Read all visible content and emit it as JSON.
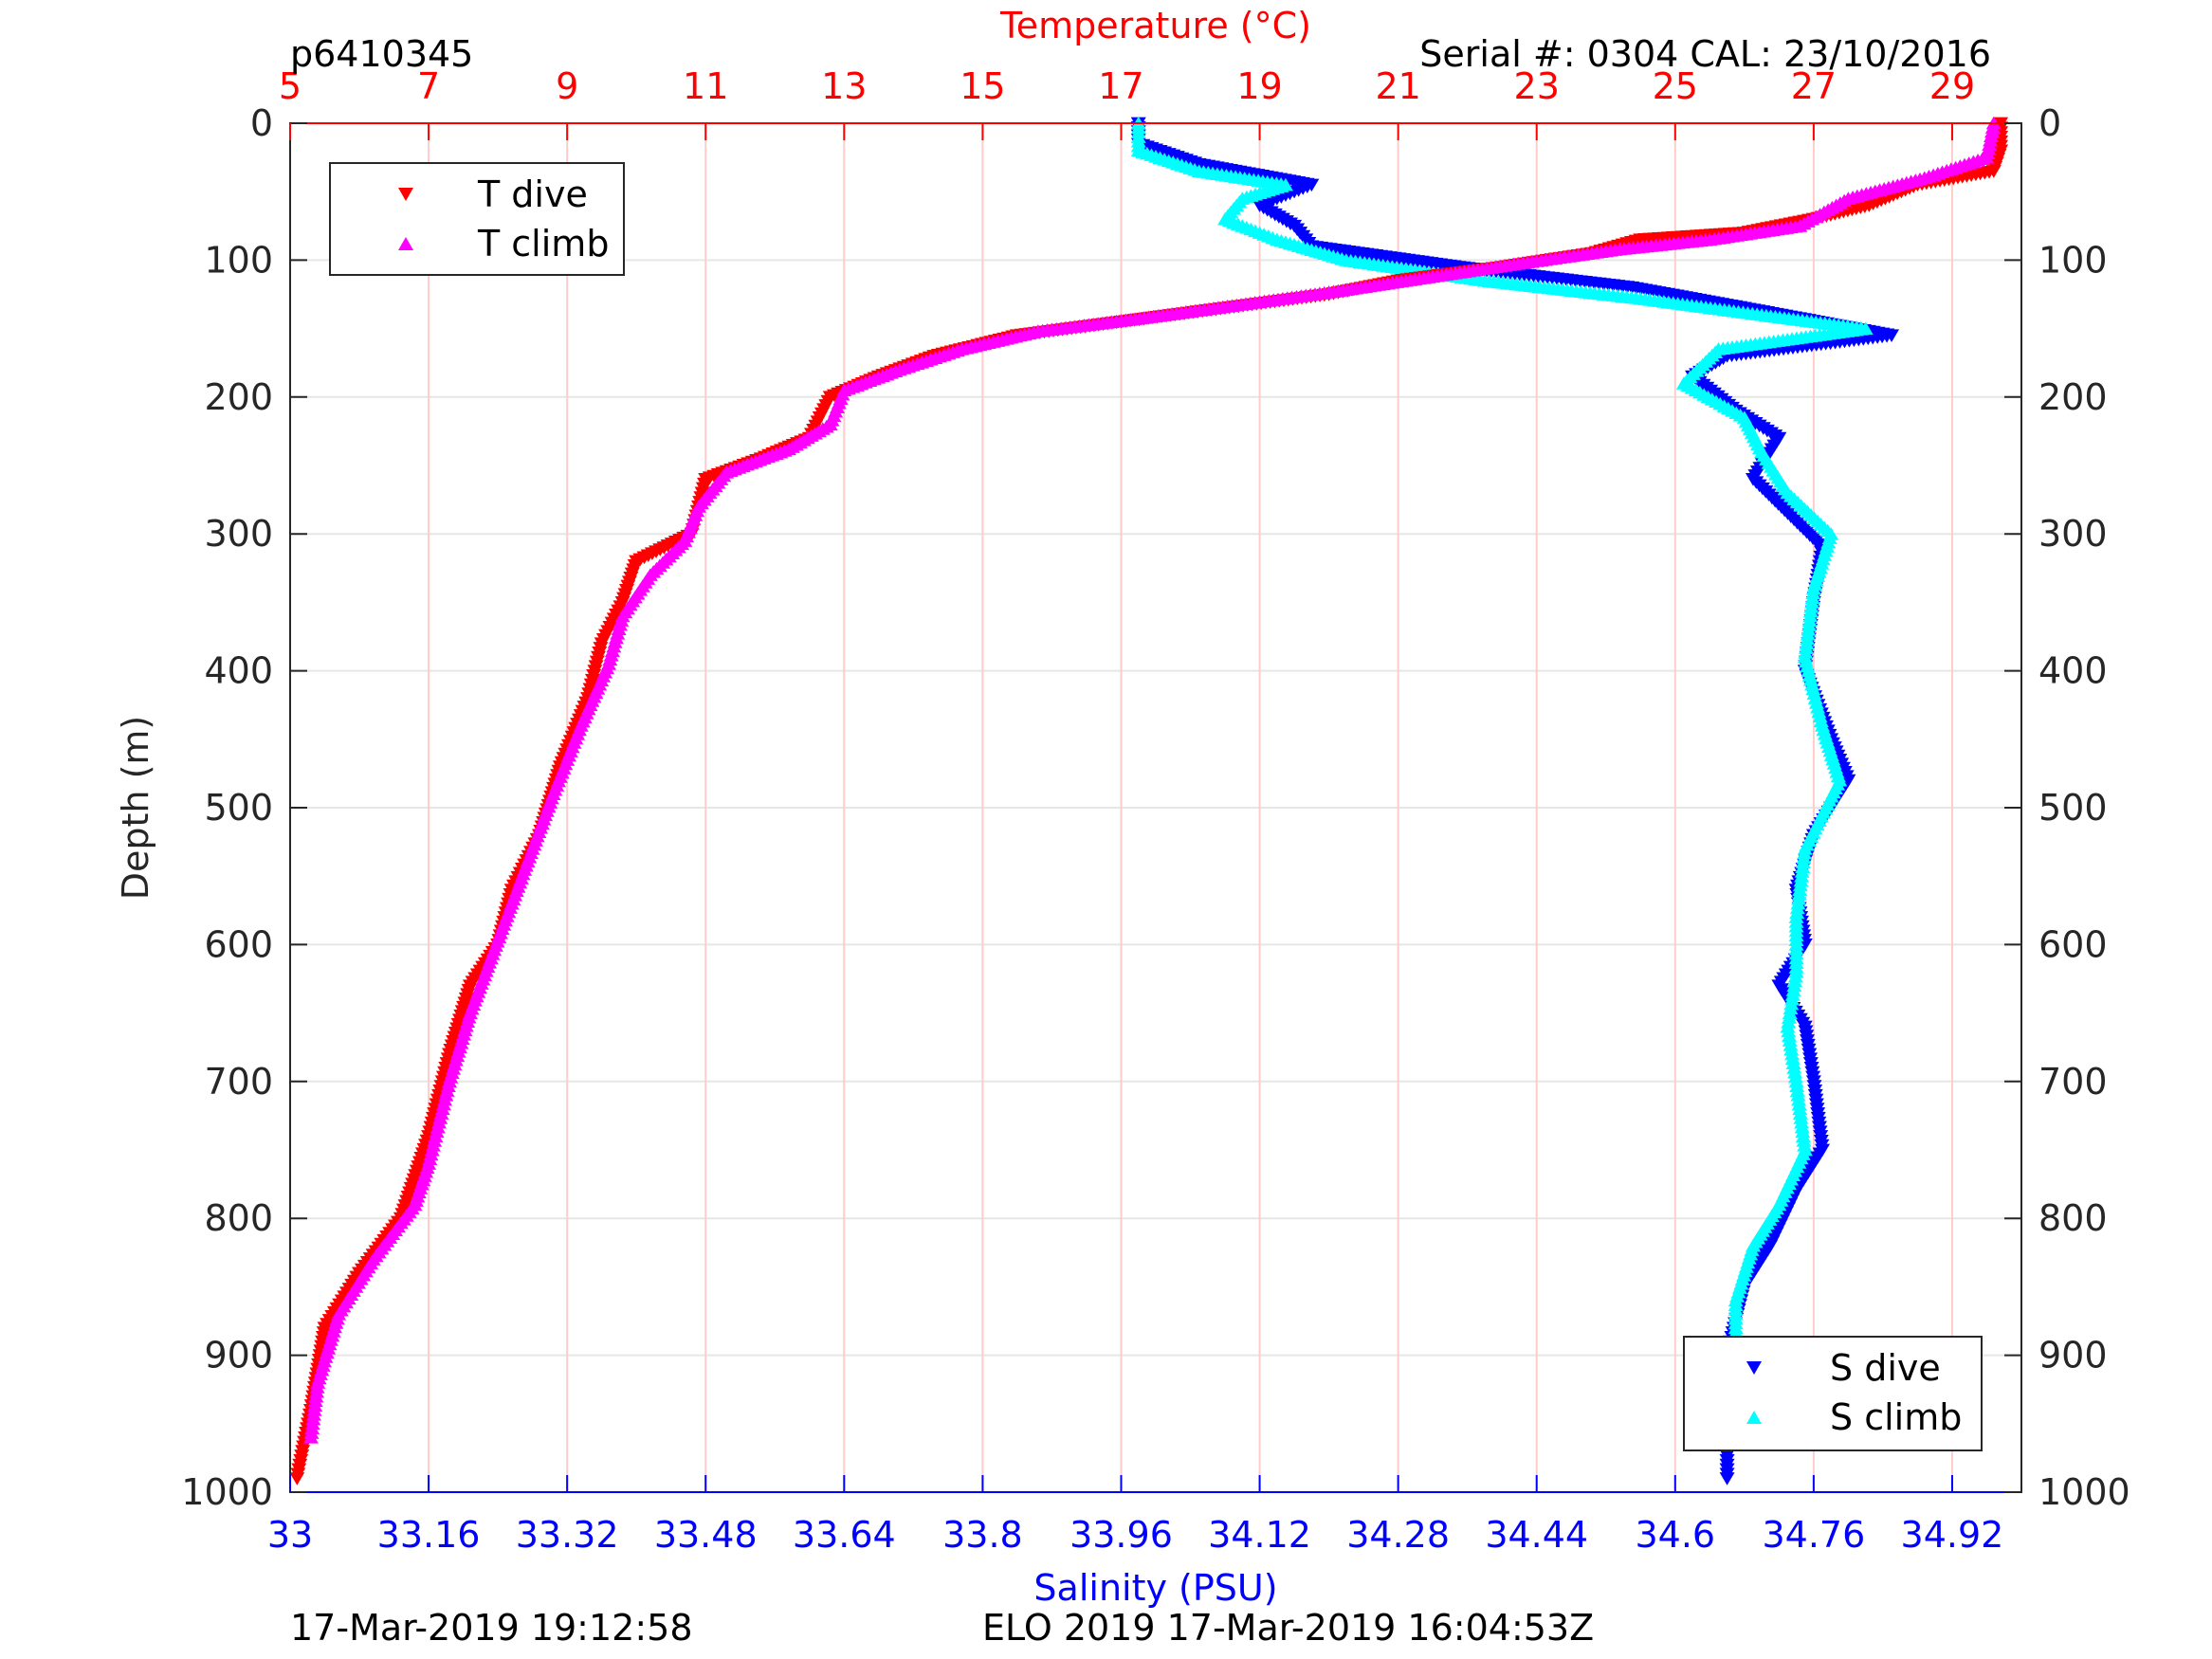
{
  "header": {
    "profile_id": "p6410345",
    "serial": "Serial #: 0304  CAL: 23/10/2016"
  },
  "footer": {
    "left": "17-Mar-2019 19:12:58",
    "center": "ELO 2019 17-Mar-2019 16:04:53Z"
  },
  "colors": {
    "t_dive": "#ff0000",
    "t_climb": "#ff00ff",
    "s_dive": "#0000ff",
    "s_climb": "#00ffff",
    "temp_axis": "#ff0000",
    "sal_axis": "#0000ff",
    "grid": "#e6e6e6",
    "temp_grid": "#ffcccc"
  },
  "chart_data": {
    "type": "scatter",
    "title": "",
    "ylabel": "Depth (m)",
    "ylim": [
      0,
      1000
    ],
    "y_reversed": true,
    "yticks": [
      "0",
      "100",
      "200",
      "300",
      "400",
      "500",
      "600",
      "700",
      "800",
      "900",
      "1000"
    ],
    "temperature_axis": {
      "label": "Temperature (°C)",
      "range": [
        5,
        30
      ],
      "ticks": [
        "5",
        "7",
        "9",
        "11",
        "13",
        "15",
        "17",
        "19",
        "21",
        "23",
        "25",
        "27",
        "29"
      ]
    },
    "salinity_axis": {
      "label": "Salinity (PSU)",
      "range": [
        33,
        35
      ],
      "ticks": [
        "33",
        "33.16",
        "33.32",
        "33.48",
        "33.64",
        "33.8",
        "33.96",
        "34.12",
        "34.28",
        "34.44",
        "34.6",
        "34.76",
        "34.92"
      ]
    },
    "legend_temperature": {
      "position": "top-left",
      "entries": [
        "T dive",
        "T climb"
      ]
    },
    "legend_salinity": {
      "position": "bottom-right",
      "entries": [
        "S dive",
        "S climb"
      ]
    },
    "series": [
      {
        "name": "T dive",
        "axis": "temperature",
        "marker": "triangle-down",
        "color": "#ff0000",
        "points": [
          [
            29.7,
            0
          ],
          [
            29.7,
            20
          ],
          [
            29.6,
            35
          ],
          [
            28.5,
            45
          ],
          [
            27.8,
            60
          ],
          [
            27.0,
            70
          ],
          [
            26.0,
            80
          ],
          [
            24.5,
            85
          ],
          [
            23.8,
            95
          ],
          [
            22.5,
            105
          ],
          [
            21.0,
            115
          ],
          [
            20.0,
            125
          ],
          [
            18.5,
            135
          ],
          [
            17.0,
            145
          ],
          [
            15.5,
            155
          ],
          [
            14.3,
            170
          ],
          [
            13.5,
            185
          ],
          [
            12.8,
            200
          ],
          [
            12.5,
            230
          ],
          [
            11.8,
            245
          ],
          [
            11.0,
            260
          ],
          [
            10.8,
            300
          ],
          [
            10.0,
            320
          ],
          [
            9.8,
            350
          ],
          [
            9.5,
            380
          ],
          [
            9.3,
            420
          ],
          [
            8.9,
            470
          ],
          [
            8.6,
            520
          ],
          [
            8.2,
            560
          ],
          [
            8.0,
            600
          ],
          [
            7.6,
            630
          ],
          [
            7.3,
            680
          ],
          [
            7.0,
            740
          ],
          [
            6.6,
            800
          ],
          [
            6.0,
            840
          ],
          [
            5.5,
            880
          ],
          [
            5.3,
            940
          ],
          [
            5.1,
            990
          ]
        ]
      },
      {
        "name": "T climb",
        "axis": "temperature",
        "marker": "triangle-up",
        "color": "#ff00ff",
        "points": [
          [
            29.6,
            0
          ],
          [
            29.5,
            25
          ],
          [
            28.6,
            40
          ],
          [
            27.5,
            55
          ],
          [
            26.8,
            75
          ],
          [
            25.5,
            85
          ],
          [
            24.2,
            92
          ],
          [
            22.8,
            102
          ],
          [
            21.5,
            112
          ],
          [
            20.2,
            122
          ],
          [
            18.8,
            132
          ],
          [
            17.2,
            143
          ],
          [
            15.8,
            152
          ],
          [
            14.7,
            165
          ],
          [
            13.8,
            180
          ],
          [
            13.0,
            195
          ],
          [
            12.8,
            220
          ],
          [
            12.2,
            238
          ],
          [
            11.3,
            255
          ],
          [
            10.9,
            280
          ],
          [
            10.7,
            305
          ],
          [
            10.2,
            330
          ],
          [
            9.8,
            360
          ],
          [
            9.6,
            395
          ],
          [
            9.2,
            440
          ],
          [
            8.8,
            490
          ],
          [
            8.5,
            530
          ],
          [
            8.2,
            570
          ],
          [
            7.9,
            610
          ],
          [
            7.6,
            650
          ],
          [
            7.3,
            700
          ],
          [
            7.0,
            760
          ],
          [
            6.8,
            790
          ],
          [
            6.2,
            830
          ],
          [
            5.7,
            870
          ],
          [
            5.4,
            920
          ],
          [
            5.3,
            960
          ]
        ]
      },
      {
        "name": "S dive",
        "axis": "salinity",
        "marker": "triangle-down",
        "color": "#0000ff",
        "points": [
          [
            33.98,
            0
          ],
          [
            33.98,
            15
          ],
          [
            34.05,
            30
          ],
          [
            34.18,
            45
          ],
          [
            34.12,
            60
          ],
          [
            34.16,
            75
          ],
          [
            34.18,
            90
          ],
          [
            34.35,
            105
          ],
          [
            34.55,
            120
          ],
          [
            34.68,
            135
          ],
          [
            34.85,
            155
          ],
          [
            34.66,
            170
          ],
          [
            34.62,
            185
          ],
          [
            34.67,
            210
          ],
          [
            34.72,
            230
          ],
          [
            34.69,
            260
          ],
          [
            34.73,
            285
          ],
          [
            34.77,
            310
          ],
          [
            34.76,
            350
          ],
          [
            34.75,
            400
          ],
          [
            34.78,
            450
          ],
          [
            34.8,
            480
          ],
          [
            34.76,
            520
          ],
          [
            34.74,
            560
          ],
          [
            34.75,
            600
          ],
          [
            34.72,
            630
          ],
          [
            34.75,
            660
          ],
          [
            34.76,
            700
          ],
          [
            34.77,
            750
          ],
          [
            34.74,
            780
          ],
          [
            34.71,
            820
          ],
          [
            34.68,
            850
          ],
          [
            34.66,
            900
          ],
          [
            34.66,
            950
          ],
          [
            34.66,
            990
          ]
        ]
      },
      {
        "name": "S climb",
        "axis": "salinity",
        "marker": "triangle-up",
        "color": "#00ffff",
        "points": [
          [
            33.98,
            0
          ],
          [
            33.98,
            20
          ],
          [
            34.05,
            35
          ],
          [
            34.15,
            45
          ],
          [
            34.1,
            55
          ],
          [
            34.08,
            70
          ],
          [
            34.14,
            85
          ],
          [
            34.22,
            100
          ],
          [
            34.38,
            115
          ],
          [
            34.56,
            128
          ],
          [
            34.7,
            140
          ],
          [
            34.82,
            150
          ],
          [
            34.65,
            165
          ],
          [
            34.61,
            190
          ],
          [
            34.68,
            215
          ],
          [
            34.7,
            240
          ],
          [
            34.73,
            270
          ],
          [
            34.78,
            300
          ],
          [
            34.76,
            340
          ],
          [
            34.75,
            390
          ],
          [
            34.77,
            440
          ],
          [
            34.79,
            480
          ],
          [
            34.75,
            530
          ],
          [
            34.74,
            580
          ],
          [
            34.74,
            620
          ],
          [
            34.73,
            660
          ],
          [
            34.74,
            700
          ],
          [
            34.75,
            750
          ],
          [
            34.72,
            790
          ],
          [
            34.69,
            820
          ],
          [
            34.67,
            860
          ],
          [
            34.67,
            920
          ],
          [
            34.68,
            960
          ]
        ]
      }
    ]
  }
}
